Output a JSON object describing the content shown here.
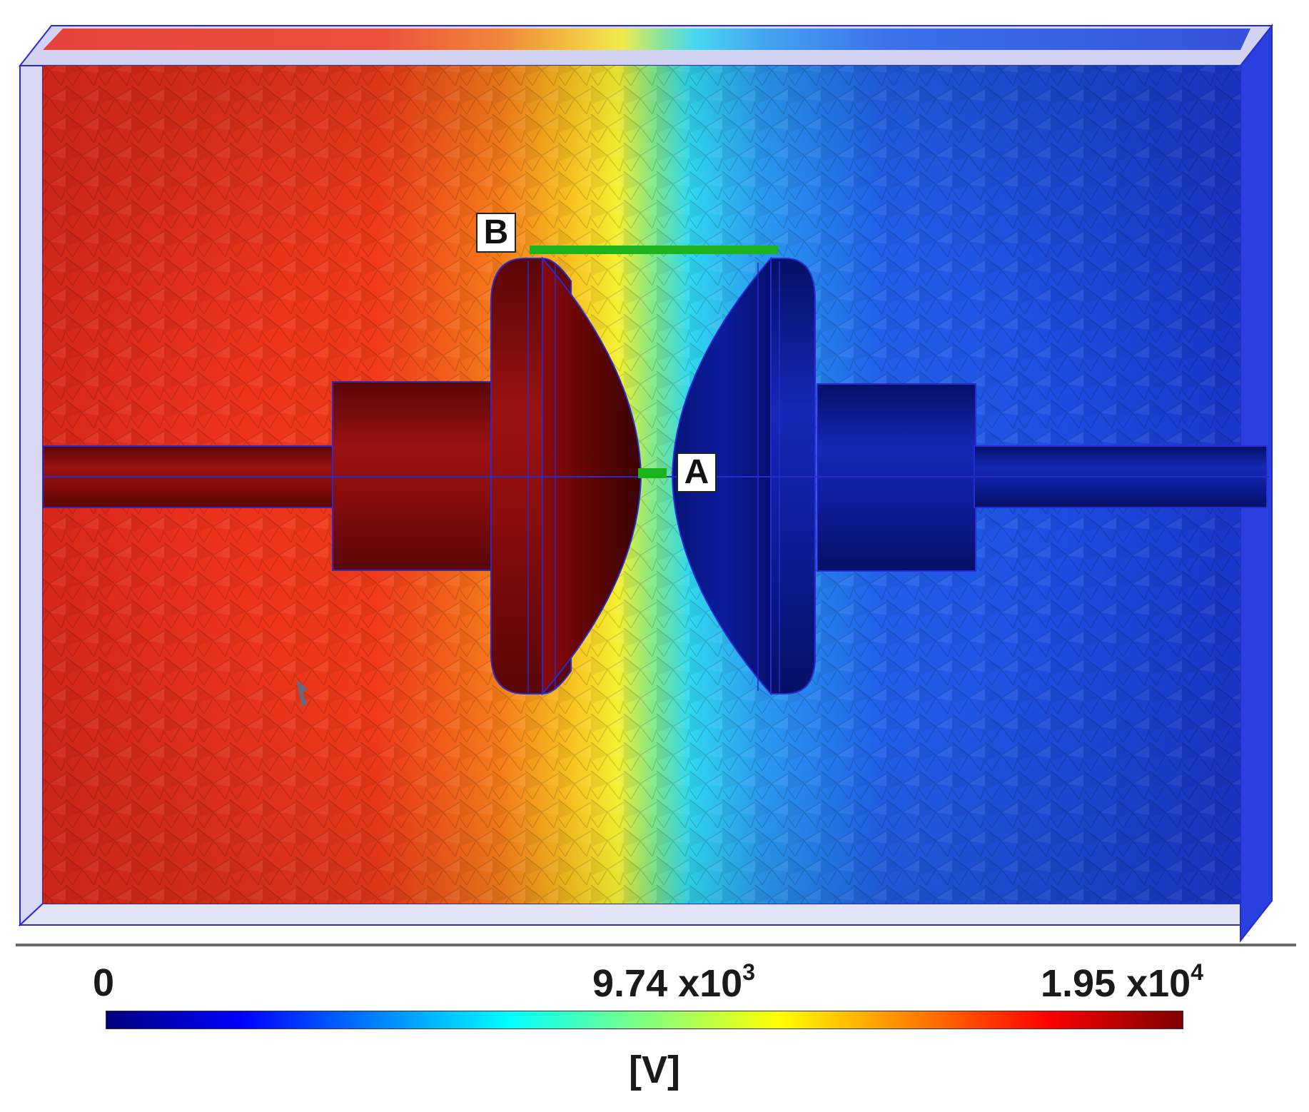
{
  "scale": {
    "min_label": "0",
    "mid_mantissa": "9.74 x10",
    "mid_exponent": "3",
    "max_mantissa": "1.95 x10",
    "max_exponent": "4",
    "unit": "[V]",
    "min_value": 0,
    "mid_value": 9740,
    "max_value": 19500,
    "colormap": [
      "#00007f",
      "#0000ff",
      "#0080ff",
      "#00ffff",
      "#80ff80",
      "#ffff00",
      "#ff8000",
      "#ff0000",
      "#7f0000"
    ]
  },
  "markers": {
    "a_label": "A",
    "b_label": "B",
    "line_color": "#1db31d"
  },
  "colors": {
    "high_potential_electrode": "#8a0c0c",
    "low_potential_electrode": "#0a1a9e",
    "wireframe": "#2a2ad0",
    "domain_frame_fill": "#c8c8f0"
  }
}
